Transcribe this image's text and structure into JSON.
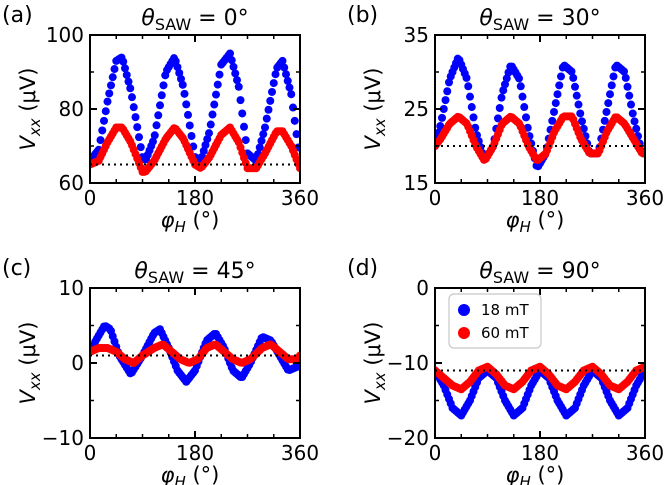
{
  "chart_data": [
    {
      "panel": "(a)",
      "type": "scatter",
      "title": "θ_SAW = 0°",
      "xlabel": "φ_H (°)",
      "ylabel": "V_xx (μV)",
      "xlim": [
        0,
        360
      ],
      "ylim": [
        60,
        100
      ],
      "xticks": [
        0,
        180,
        360
      ],
      "yticks": [
        60,
        80,
        100
      ],
      "reference_line": 65,
      "series": [
        {
          "name": "18 mT",
          "color": "#0000ff",
          "values": [
            [
              0,
              66
            ],
            [
              15,
              69
            ],
            [
              30,
              82
            ],
            [
              45,
              93
            ],
            [
              55,
              94
            ],
            [
              70,
              85
            ],
            [
              90,
              67
            ],
            [
              95,
              66
            ],
            [
              110,
              72
            ],
            [
              130,
              90
            ],
            [
              145,
              94
            ],
            [
              160,
              86
            ],
            [
              180,
              67
            ],
            [
              190,
              66
            ],
            [
              205,
              74
            ],
            [
              225,
              92
            ],
            [
              240,
              95
            ],
            [
              255,
              86
            ],
            [
              270,
              68
            ],
            [
              285,
              66
            ],
            [
              300,
              75
            ],
            [
              320,
              91
            ],
            [
              330,
              93
            ],
            [
              345,
              84
            ],
            [
              360,
              66
            ]
          ]
        },
        {
          "name": "60 mT",
          "color": "#ff0000",
          "values": [
            [
              0,
              65
            ],
            [
              15,
              66
            ],
            [
              30,
              71
            ],
            [
              45,
              75
            ],
            [
              55,
              75
            ],
            [
              70,
              71
            ],
            [
              90,
              63
            ],
            [
              95,
              63
            ],
            [
              110,
              66
            ],
            [
              130,
              72
            ],
            [
              145,
              75
            ],
            [
              160,
              72
            ],
            [
              180,
              65
            ],
            [
              190,
              64
            ],
            [
              205,
              67
            ],
            [
              225,
              73
            ],
            [
              240,
              75
            ],
            [
              255,
              71
            ],
            [
              270,
              64
            ],
            [
              285,
              64
            ],
            [
              300,
              68
            ],
            [
              320,
              74
            ],
            [
              330,
              74
            ],
            [
              345,
              70
            ],
            [
              360,
              64
            ]
          ]
        }
      ]
    },
    {
      "panel": "(b)",
      "type": "scatter",
      "title": "θ_SAW = 30°",
      "xlabel": "φ_H (°)",
      "ylabel": "V_xx (μV)",
      "xlim": [
        0,
        360
      ],
      "ylim": [
        15,
        35
      ],
      "xticks": [
        0,
        180,
        360
      ],
      "yticks": [
        15,
        25,
        35
      ],
      "reference_line": 20,
      "series": [
        {
          "name": "18 mT",
          "color": "#0000ff",
          "values": [
            [
              0,
              20
            ],
            [
              10,
              23
            ],
            [
              25,
              29
            ],
            [
              40,
              32
            ],
            [
              55,
              29
            ],
            [
              70,
              22
            ],
            [
              85,
              18
            ],
            [
              100,
              20
            ],
            [
              115,
              27
            ],
            [
              130,
              31
            ],
            [
              145,
              29
            ],
            [
              160,
              22
            ],
            [
              175,
              17
            ],
            [
              190,
              19
            ],
            [
              205,
              25
            ],
            [
              220,
              31
            ],
            [
              235,
              30
            ],
            [
              250,
              24
            ],
            [
              265,
              19
            ],
            [
              280,
              19
            ],
            [
              295,
              25
            ],
            [
              310,
              31
            ],
            [
              325,
              30
            ],
            [
              340,
              24
            ],
            [
              355,
              19
            ],
            [
              360,
              19
            ]
          ]
        },
        {
          "name": "60 mT",
          "color": "#ff0000",
          "values": [
            [
              0,
              20
            ],
            [
              10,
              21
            ],
            [
              25,
              23
            ],
            [
              40,
              24
            ],
            [
              55,
              23
            ],
            [
              70,
              20
            ],
            [
              85,
              18
            ],
            [
              100,
              20
            ],
            [
              115,
              23
            ],
            [
              130,
              24
            ],
            [
              145,
              23
            ],
            [
              160,
              20
            ],
            [
              175,
              18
            ],
            [
              190,
              19
            ],
            [
              205,
              22
            ],
            [
              220,
              24
            ],
            [
              235,
              24
            ],
            [
              250,
              21
            ],
            [
              265,
              19
            ],
            [
              280,
              19
            ],
            [
              295,
              22
            ],
            [
              310,
              24
            ],
            [
              325,
              23
            ],
            [
              340,
              21
            ],
            [
              355,
              19
            ],
            [
              360,
              19
            ]
          ]
        }
      ]
    },
    {
      "panel": "(c)",
      "type": "scatter",
      "title": "θ_SAW = 45°",
      "xlabel": "φ_H (°)",
      "ylabel": "V_xx (μV)",
      "xlim": [
        0,
        360
      ],
      "ylim": [
        -10,
        10
      ],
      "xticks": [
        0,
        180,
        360
      ],
      "yticks": [
        -10,
        0,
        10
      ],
      "reference_line": 1,
      "series": [
        {
          "name": "18 mT",
          "color": "#0000ff",
          "values": [
            [
              0,
              1.5
            ],
            [
              10,
              3
            ],
            [
              25,
              5
            ],
            [
              35,
              4.5
            ],
            [
              50,
              1
            ],
            [
              70,
              -1.5
            ],
            [
              90,
              1
            ],
            [
              110,
              4
            ],
            [
              120,
              4.5
            ],
            [
              135,
              2
            ],
            [
              150,
              -1
            ],
            [
              165,
              -2.5
            ],
            [
              180,
              -1
            ],
            [
              200,
              3
            ],
            [
              215,
              4
            ],
            [
              230,
              2
            ],
            [
              245,
              -1
            ],
            [
              260,
              -2
            ],
            [
              275,
              0
            ],
            [
              295,
              3.5
            ],
            [
              310,
              3
            ],
            [
              325,
              1
            ],
            [
              340,
              -1
            ],
            [
              355,
              -0.5
            ],
            [
              360,
              0
            ]
          ]
        },
        {
          "name": "60 mT",
          "color": "#ff0000",
          "values": [
            [
              0,
              1.5
            ],
            [
              15,
              2
            ],
            [
              30,
              2
            ],
            [
              45,
              1.5
            ],
            [
              60,
              0.5
            ],
            [
              75,
              0
            ],
            [
              90,
              1
            ],
            [
              110,
              2
            ],
            [
              125,
              2.5
            ],
            [
              140,
              1.5
            ],
            [
              155,
              0.5
            ],
            [
              170,
              0
            ],
            [
              185,
              0.5
            ],
            [
              200,
              2
            ],
            [
              215,
              2.5
            ],
            [
              230,
              1.5
            ],
            [
              245,
              0.5
            ],
            [
              260,
              0
            ],
            [
              275,
              0.5
            ],
            [
              295,
              2
            ],
            [
              310,
              2.5
            ],
            [
              325,
              1.5
            ],
            [
              340,
              0.5
            ],
            [
              355,
              0.5
            ],
            [
              360,
              1
            ]
          ]
        }
      ]
    },
    {
      "panel": "(d)",
      "type": "scatter",
      "title": "θ_SAW = 90°",
      "xlabel": "φ_H (°)",
      "ylabel": "V_xx (μV)",
      "xlim": [
        0,
        360
      ],
      "ylim": [
        -20,
        0
      ],
      "xticks": [
        0,
        180,
        360
      ],
      "yticks": [
        -20,
        -10,
        0
      ],
      "reference_line": -11,
      "legend": {
        "placement": "top-left",
        "entries": [
          "18 mT",
          "60 mT"
        ]
      },
      "series": [
        {
          "name": "18 mT",
          "color": "#0000ff",
          "values": [
            [
              0,
              -11
            ],
            [
              15,
              -13
            ],
            [
              30,
              -16
            ],
            [
              45,
              -17
            ],
            [
              60,
              -15
            ],
            [
              75,
              -12
            ],
            [
              90,
              -11
            ],
            [
              105,
              -12
            ],
            [
              120,
              -15
            ],
            [
              135,
              -17
            ],
            [
              150,
              -16
            ],
            [
              165,
              -13
            ],
            [
              180,
              -11
            ],
            [
              195,
              -12
            ],
            [
              210,
              -15
            ],
            [
              225,
              -17
            ],
            [
              240,
              -16
            ],
            [
              255,
              -13
            ],
            [
              270,
              -11
            ],
            [
              285,
              -12
            ],
            [
              300,
              -15
            ],
            [
              315,
              -17
            ],
            [
              330,
              -16
            ],
            [
              345,
              -13
            ],
            [
              360,
              -11
            ]
          ]
        },
        {
          "name": "60 mT",
          "color": "#ff0000",
          "values": [
            [
              0,
              -11
            ],
            [
              15,
              -12
            ],
            [
              30,
              -13
            ],
            [
              45,
              -13.5
            ],
            [
              60,
              -12.5
            ],
            [
              75,
              -11
            ],
            [
              90,
              -10.5
            ],
            [
              105,
              -11.5
            ],
            [
              120,
              -13
            ],
            [
              135,
              -13.5
            ],
            [
              150,
              -12.5
            ],
            [
              165,
              -11
            ],
            [
              180,
              -10.5
            ],
            [
              195,
              -11.5
            ],
            [
              210,
              -13
            ],
            [
              225,
              -13.5
            ],
            [
              240,
              -12.5
            ],
            [
              255,
              -11
            ],
            [
              270,
              -10.5
            ],
            [
              285,
              -11.5
            ],
            [
              300,
              -13
            ],
            [
              315,
              -13.5
            ],
            [
              330,
              -12.5
            ],
            [
              345,
              -11
            ],
            [
              360,
              -10.5
            ]
          ]
        }
      ]
    }
  ]
}
